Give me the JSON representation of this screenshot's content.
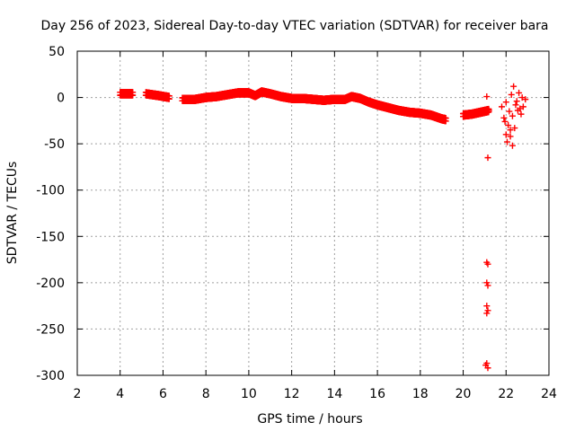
{
  "chart_data": {
    "type": "scatter",
    "title": "Day 256 of 2023, Sidereal Day-to-day VTEC variation (SDTVAR) for receiver bara",
    "xlabel": "GPS time / hours",
    "ylabel": "SDTVAR / TECUs",
    "xlim": [
      2,
      24
    ],
    "ylim": [
      -300,
      50
    ],
    "xticks": [
      2,
      4,
      6,
      8,
      10,
      12,
      14,
      16,
      18,
      20,
      22,
      24
    ],
    "yticks": [
      50,
      0,
      -50,
      -100,
      -150,
      -200,
      -250,
      -300
    ],
    "grid": true,
    "marker": "+",
    "series": [
      {
        "name": "SDTVAR",
        "color": "#ff0000",
        "trend": [
          [
            3.3,
            4
          ],
          [
            4.0,
            4
          ],
          [
            4.6,
            4
          ],
          [
            5.2,
            4
          ],
          [
            5.8,
            2
          ],
          [
            6.3,
            0
          ],
          [
            6.9,
            -2
          ],
          [
            7.5,
            -2
          ],
          [
            8.0,
            0
          ],
          [
            8.5,
            1
          ],
          [
            9.0,
            3
          ],
          [
            9.5,
            5
          ],
          [
            10.0,
            5
          ],
          [
            10.3,
            2
          ],
          [
            10.6,
            6
          ],
          [
            11.0,
            4
          ],
          [
            11.5,
            1
          ],
          [
            12.0,
            -1
          ],
          [
            12.5,
            -1
          ],
          [
            13.0,
            -2
          ],
          [
            13.5,
            -3
          ],
          [
            14.0,
            -2
          ],
          [
            14.5,
            -2
          ],
          [
            14.8,
            1
          ],
          [
            15.2,
            -1
          ],
          [
            15.6,
            -5
          ],
          [
            16.0,
            -8
          ],
          [
            16.5,
            -11
          ],
          [
            17.0,
            -14
          ],
          [
            17.5,
            -16
          ],
          [
            18.0,
            -17
          ],
          [
            18.5,
            -19
          ],
          [
            19.0,
            -23
          ],
          [
            19.2,
            -24
          ],
          [
            20.0,
            -19
          ],
          [
            20.4,
            -18
          ],
          [
            20.8,
            -16
          ],
          [
            21.2,
            -14
          ]
        ],
        "extra_points": [
          [
            21.1,
            1
          ],
          [
            21.15,
            -65
          ],
          [
            21.1,
            -178
          ],
          [
            21.15,
            -180
          ],
          [
            21.1,
            -200
          ],
          [
            21.15,
            -203
          ],
          [
            21.1,
            -225
          ],
          [
            21.15,
            -230
          ],
          [
            21.1,
            -287
          ],
          [
            21.15,
            -292
          ],
          [
            21.05,
            -289
          ],
          [
            21.1,
            -233
          ],
          [
            21.8,
            -10
          ],
          [
            21.9,
            -22
          ],
          [
            22.0,
            -5
          ],
          [
            22.1,
            -30
          ],
          [
            22.2,
            -42
          ],
          [
            22.3,
            -52
          ],
          [
            22.0,
            -40
          ],
          [
            22.15,
            -15
          ],
          [
            22.25,
            3
          ],
          [
            22.35,
            12
          ],
          [
            22.4,
            -33
          ],
          [
            22.5,
            -4
          ],
          [
            22.6,
            5
          ],
          [
            22.7,
            -18
          ],
          [
            22.8,
            -10
          ],
          [
            22.9,
            -2
          ],
          [
            22.75,
            0
          ],
          [
            22.55,
            -14
          ],
          [
            21.95,
            -26
          ],
          [
            22.05,
            -48
          ],
          [
            22.2,
            -35
          ],
          [
            22.3,
            -20
          ],
          [
            22.45,
            -8
          ],
          [
            22.65,
            -12
          ]
        ]
      }
    ]
  }
}
